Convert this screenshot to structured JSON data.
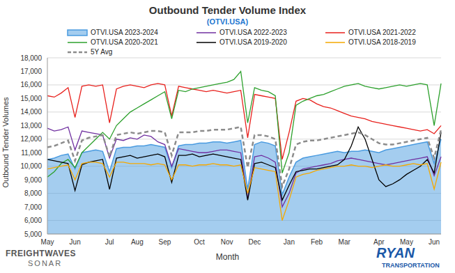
{
  "chart_data": {
    "type": "line",
    "title": "Outbound Tender Volume Index",
    "subtitle": "(OTVI.USA)",
    "x_label": "Month",
    "y_label": "Outbound Tender Volumes",
    "annotations": [
      "FREIGHTWAVES",
      "SONAR",
      "RYAN",
      "TRANSPORTATION"
    ],
    "legend": "top",
    "grid": true,
    "categories": [
      "May",
      null,
      null,
      null,
      "Jun",
      null,
      null,
      null,
      null,
      "Jul",
      null,
      null,
      null,
      "Aug",
      null,
      null,
      null,
      "Sep",
      null,
      null,
      null,
      null,
      "Oct",
      null,
      null,
      null,
      "Nov",
      null,
      null,
      null,
      "Dec",
      null,
      null,
      null,
      null,
      "Jan",
      null,
      null,
      null,
      "Feb",
      null,
      null,
      null,
      "Mar",
      null,
      null,
      null,
      null,
      "Apr",
      null,
      null,
      null,
      "May",
      null,
      null,
      null,
      "Jun",
      null
    ],
    "ylim": [
      5000,
      18000
    ],
    "yticks": [
      {
        "value": 5000,
        "label": "5,000"
      },
      {
        "value": 6000,
        "label": "6,000"
      },
      {
        "value": 7000,
        "label": "7,000"
      },
      {
        "value": 8000,
        "label": "8,000"
      },
      {
        "value": 9000,
        "label": "9,000"
      },
      {
        "value": 10000,
        "label": "10,000"
      },
      {
        "value": 11000,
        "label": "11,000"
      },
      {
        "value": 12000,
        "label": "12,000"
      },
      {
        "value": 13000,
        "label": "13,000"
      },
      {
        "value": 14000,
        "label": "14,000"
      },
      {
        "value": 15000,
        "label": "15,000"
      },
      {
        "value": 16000,
        "label": "16,000"
      },
      {
        "value": 17000,
        "label": "17,000"
      },
      {
        "value": 18000,
        "label": "18,000"
      }
    ],
    "series": [
      {
        "name": "OTVI.USA 2023-2024",
        "type": "area",
        "color": "#4a9be0",
        "values": [
          10500,
          10600,
          10800,
          10900,
          9800,
          11000,
          11100,
          11200,
          11100,
          9600,
          11300,
          11400,
          11400,
          11500,
          11500,
          11600,
          11500,
          11400,
          9900,
          11500,
          11600,
          11600,
          11700,
          11700,
          11800,
          11800,
          11700,
          11800,
          11900,
          8300,
          11600,
          11800,
          11700,
          11500,
          7900,
          9200,
          10300,
          10600,
          10700,
          10800,
          10900,
          11000,
          11100,
          11000,
          11100,
          11100,
          11200,
          11100,
          11000,
          11200,
          11300,
          11400,
          11500,
          11600,
          11700,
          11800,
          10200,
          12000
        ]
      },
      {
        "name": "OTVI.USA 2022-2023",
        "type": "line",
        "color": "#7030a0",
        "values": [
          12800,
          12600,
          12700,
          12900,
          11200,
          12600,
          12500,
          12400,
          12300,
          10600,
          12000,
          11900,
          12100,
          12000,
          12300,
          12200,
          11800,
          11600,
          10000,
          11300,
          11200,
          11100,
          11000,
          11000,
          11100,
          11200,
          11200,
          11100,
          11000,
          7600,
          10700,
          10800,
          10600,
          10300,
          7000,
          8000,
          9500,
          9800,
          9900,
          10000,
          10100,
          10200,
          10400,
          10500,
          10600,
          10500,
          10400,
          10300,
          10200,
          10100,
          10200,
          10300,
          10400,
          10500,
          10600,
          10700,
          9300,
          10700
        ]
      },
      {
        "name": "OTVI.USA 2021-2022",
        "type": "line",
        "color": "#e8201c",
        "values": [
          15200,
          15100,
          15400,
          15800,
          13600,
          15900,
          16000,
          15900,
          16000,
          13200,
          15700,
          15900,
          16000,
          15900,
          15800,
          16000,
          16100,
          16000,
          13700,
          15900,
          15800,
          15700,
          15600,
          15500,
          15600,
          15500,
          15400,
          15500,
          15600,
          12100,
          15300,
          15200,
          15100,
          15000,
          10500,
          12500,
          14800,
          15000,
          14900,
          14600,
          14400,
          14300,
          14100,
          13900,
          13700,
          13600,
          13500,
          13300,
          13200,
          13100,
          13000,
          12900,
          12800,
          12700,
          12600,
          12700,
          12400,
          13000
        ]
      },
      {
        "name": "OTVI.USA 2020-2021",
        "type": "line",
        "color": "#2ca02c",
        "values": [
          9200,
          9600,
          10200,
          10500,
          9900,
          11000,
          11500,
          12000,
          12500,
          12000,
          13000,
          13500,
          14000,
          14300,
          14600,
          14900,
          15200,
          15500,
          13500,
          15600,
          15500,
          15700,
          15800,
          15900,
          16000,
          16100,
          16200,
          16400,
          17000,
          13200,
          15800,
          15600,
          15500,
          15200,
          9500,
          11000,
          14500,
          14800,
          15000,
          15200,
          15300,
          15500,
          15700,
          15900,
          16000,
          16100,
          15900,
          15800,
          15700,
          15800,
          15900,
          16000,
          15900,
          16000,
          16100,
          16000,
          13000,
          16100
        ]
      },
      {
        "name": "OTVI.USA 2019-2020",
        "type": "line",
        "color": "#000000",
        "values": [
          10500,
          10400,
          10300,
          10200,
          8200,
          10100,
          10300,
          10400,
          10500,
          8300,
          10600,
          10700,
          10800,
          10600,
          10700,
          10800,
          10900,
          10700,
          8800,
          10800,
          10800,
          10900,
          10700,
          10800,
          10900,
          10800,
          10700,
          10600,
          10500,
          7500,
          10200,
          10300,
          10100,
          9900,
          7500,
          8600,
          9600,
          9700,
          9800,
          9800,
          9900,
          10000,
          10100,
          10500,
          11500,
          12900,
          12000,
          10500,
          9000,
          8500,
          8700,
          9000,
          9400,
          9700,
          10000,
          10500,
          9500,
          12500
        ]
      },
      {
        "name": "OTVI.USA 2018-2019",
        "type": "line",
        "color": "#f5a800",
        "values": [
          9800,
          9900,
          10000,
          10100,
          9000,
          10200,
          10300,
          10300,
          10200,
          9200,
          10300,
          10300,
          10200,
          10200,
          10200,
          10100,
          10200,
          10100,
          9000,
          10100,
          10100,
          10000,
          10100,
          10100,
          10200,
          10100,
          10100,
          10000,
          10100,
          8000,
          9900,
          9800,
          9700,
          9600,
          6000,
          7500,
          9200,
          9400,
          9500,
          9700,
          9800,
          9900,
          10000,
          10000,
          10100,
          10000,
          10000,
          9900,
          10000,
          10100,
          10000,
          10000,
          10100,
          10200,
          10100,
          10200,
          8300,
          10300
        ]
      },
      {
        "name": "5Y Avg",
        "type": "line",
        "line_style": "dashed",
        "color": "#8c8c8c",
        "values": [
          11400,
          11500,
          11700,
          11900,
          10400,
          11900,
          12100,
          12200,
          12300,
          10700,
          12300,
          12400,
          12500,
          12400,
          12500,
          12600,
          12600,
          12500,
          10800,
          12500,
          12500,
          12500,
          12600,
          12600,
          12700,
          12700,
          12700,
          12800,
          12900,
          9900,
          12300,
          12300,
          12200,
          12000,
          8500,
          9800,
          11600,
          11800,
          11900,
          11900,
          12000,
          12100,
          12200,
          12300,
          12400,
          12500,
          12300,
          12000,
          11700,
          11600,
          11600,
          11700,
          11800,
          11900,
          12000,
          12100,
          10600,
          12700
        ]
      }
    ]
  }
}
